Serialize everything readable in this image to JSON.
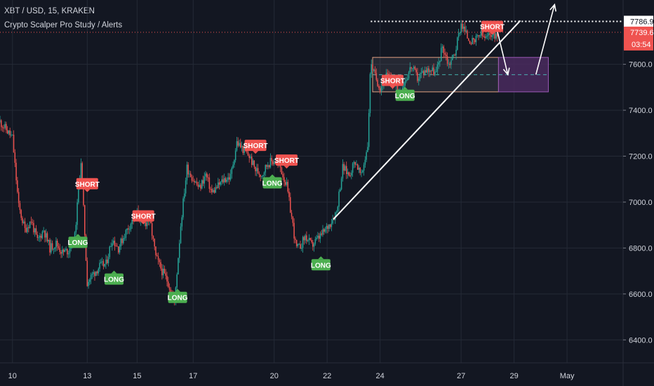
{
  "header": {
    "symbol_line": "XBT / USD, 15, KRAKEN",
    "indicator_line": "Crypto Scalper Pro Study / Alerts"
  },
  "colors": {
    "background": "#131722",
    "grid": "#242a36",
    "up": "#26a69a",
    "down": "#ef5350",
    "short_label": "#ef5350",
    "long_label": "#4caf50",
    "arrow": "#ffffff",
    "last_price_bg": "#ef5350",
    "projection_box": "#4a2a5e"
  },
  "chart_data": {
    "type": "candlestick",
    "xlim": [
      0,
      100
    ],
    "ylim": [
      6300,
      7880
    ],
    "x_ticks": [
      {
        "x": 2,
        "label": "10"
      },
      {
        "x": 14,
        "label": "13"
      },
      {
        "x": 22,
        "label": "15"
      },
      {
        "x": 31,
        "label": "17"
      },
      {
        "x": 44,
        "label": "20"
      },
      {
        "x": 52.5,
        "label": "22"
      },
      {
        "x": 61,
        "label": "24"
      },
      {
        "x": 74,
        "label": "27"
      },
      {
        "x": 82.5,
        "label": "29"
      },
      {
        "x": 91,
        "label": "May"
      }
    ],
    "y_ticks": [
      6400.0,
      6600.0,
      6800.0,
      7000.0,
      7200.0,
      7400.0,
      7600.0
    ],
    "y_tick_labels": [
      "6400.0",
      "6600.0",
      "6800.0",
      "7000.0",
      "7200.0",
      "7400.0",
      "7600.0"
    ],
    "price_path": [
      [
        0,
        7350
      ],
      [
        2,
        7280
      ],
      [
        3,
        6980
      ],
      [
        4,
        6880
      ],
      [
        5,
        6920
      ],
      [
        6,
        6830
      ],
      [
        7,
        6880
      ],
      [
        8,
        6800
      ],
      [
        9,
        6820
      ],
      [
        10,
        6780
      ],
      [
        11,
        6790
      ],
      [
        12,
        6850
      ],
      [
        13,
        7180
      ],
      [
        14,
        6650
      ],
      [
        15,
        6690
      ],
      [
        16,
        6720
      ],
      [
        17,
        6730
      ],
      [
        18,
        6840
      ],
      [
        19,
        6800
      ],
      [
        20,
        6860
      ],
      [
        21,
        6910
      ],
      [
        22,
        6950
      ],
      [
        23,
        6900
      ],
      [
        24,
        6930
      ],
      [
        25,
        6760
      ],
      [
        26,
        6700
      ],
      [
        27,
        6650
      ],
      [
        28,
        6560
      ],
      [
        29,
        6900
      ],
      [
        30,
        7150
      ],
      [
        31,
        7100
      ],
      [
        32,
        7060
      ],
      [
        33,
        7120
      ],
      [
        34,
        7040
      ],
      [
        35,
        7070
      ],
      [
        36,
        7100
      ],
      [
        37,
        7110
      ],
      [
        38,
        7260
      ],
      [
        39,
        7230
      ],
      [
        40,
        7200
      ],
      [
        41,
        7140
      ],
      [
        42,
        7120
      ],
      [
        43,
        7170
      ],
      [
        44,
        7180
      ],
      [
        45,
        7150
      ],
      [
        46,
        7070
      ],
      [
        47,
        6900
      ],
      [
        47.5,
        6800
      ],
      [
        48,
        6800
      ],
      [
        49,
        6850
      ],
      [
        50,
        6810
      ],
      [
        51,
        6840
      ],
      [
        52,
        6870
      ],
      [
        53,
        6910
      ],
      [
        54,
        6960
      ],
      [
        55,
        7150
      ],
      [
        56,
        7120
      ],
      [
        57,
        7180
      ],
      [
        58,
        7110
      ],
      [
        59,
        7250
      ],
      [
        59.5,
        7620
      ],
      [
        60,
        7560
      ],
      [
        61,
        7500
      ],
      [
        62,
        7550
      ],
      [
        63,
        7520
      ],
      [
        64,
        7480
      ],
      [
        65,
        7530
      ],
      [
        66,
        7590
      ],
      [
        67,
        7540
      ],
      [
        68,
        7570
      ],
      [
        69,
        7580
      ],
      [
        70,
        7560
      ],
      [
        71,
        7680
      ],
      [
        72,
        7600
      ],
      [
        73,
        7650
      ],
      [
        74,
        7780
      ],
      [
        75,
        7720
      ],
      [
        76,
        7690
      ],
      [
        77,
        7730
      ],
      [
        78,
        7710
      ],
      [
        79,
        7740
      ],
      [
        80,
        7720
      ]
    ],
    "signals": [
      {
        "type": "SHORT",
        "x": 14,
        "y": 7080,
        "label": "SHORT"
      },
      {
        "type": "LONG",
        "x": 12.5,
        "y": 6825,
        "label": "LONG"
      },
      {
        "type": "LONG",
        "x": 18.3,
        "y": 6665,
        "label": "LONG"
      },
      {
        "type": "SHORT",
        "x": 23,
        "y": 6940,
        "label": "SHORT"
      },
      {
        "type": "LONG",
        "x": 28.5,
        "y": 6585,
        "label": "LONG"
      },
      {
        "type": "SHORT",
        "x": 41,
        "y": 7247,
        "label": "SHORT"
      },
      {
        "type": "LONG",
        "x": 43.7,
        "y": 7084,
        "label": "LONG"
      },
      {
        "type": "SHORT",
        "x": 46,
        "y": 7183,
        "label": "SHORT"
      },
      {
        "type": "LONG",
        "x": 51.5,
        "y": 6727,
        "label": "LONG"
      },
      {
        "type": "SHORT",
        "x": 63,
        "y": 7530,
        "label": "SHORT"
      },
      {
        "type": "LONG",
        "x": 65,
        "y": 7465,
        "label": "LONG"
      },
      {
        "type": "SHORT",
        "x": 79,
        "y": 7765,
        "label": "SHORT"
      }
    ],
    "trend_line": [
      [
        53.5,
        6925
      ],
      [
        83.5,
        7790
      ]
    ],
    "high_line_value": 7786.9,
    "current_price_value": 7739.6,
    "range_box": {
      "x0": 59.8,
      "x1": 80,
      "y_top": 7630,
      "y_bottom": 7480
    },
    "projection_box": {
      "x0": 80,
      "x1": 88,
      "y_top": 7630,
      "y_bottom": 7480
    },
    "box_mid_value": 7555,
    "arrows": [
      [
        [
          79.5,
          7780
        ],
        [
          81.5,
          7555
        ]
      ],
      [
        [
          86,
          7555
        ],
        [
          89,
          7860
        ]
      ]
    ],
    "price_labels": {
      "high": "7786.9",
      "current": "7739.6",
      "countdown": "03:54"
    }
  }
}
